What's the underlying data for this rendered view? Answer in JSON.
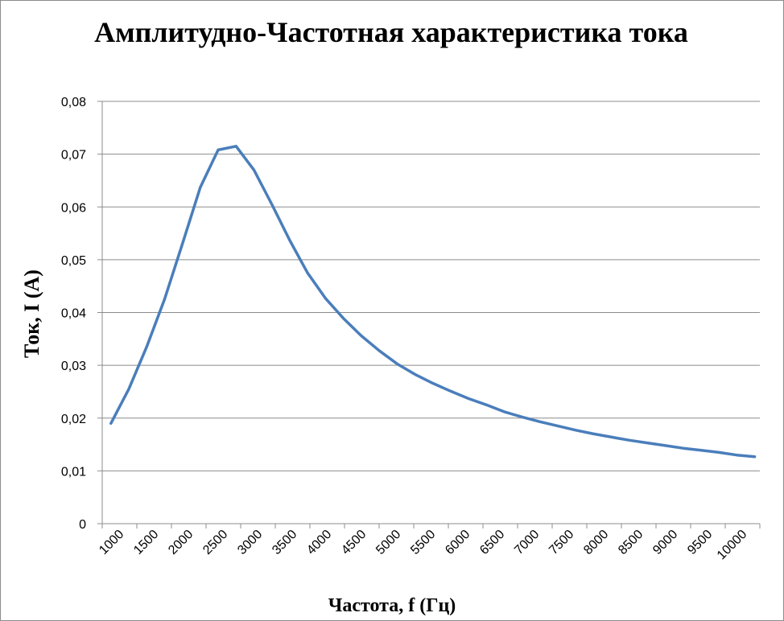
{
  "chart_data": {
    "type": "line",
    "title": "Амплитудно-Частотная характеристика тока",
    "xlabel": "Частота, f (Гц)",
    "ylabel": "Ток, I (A)",
    "ylim": [
      0,
      0.08
    ],
    "yticks": [
      "0",
      "0,01",
      "0,02",
      "0,03",
      "0,04",
      "0,05",
      "0,06",
      "0,07",
      "0,08"
    ],
    "xtick_labels": [
      "1000",
      "1500",
      "2000",
      "2500",
      "3000",
      "3500",
      "4000",
      "4500",
      "5000",
      "5500",
      "6000",
      "6500",
      "7000",
      "7500",
      "8000",
      "8500",
      "9000",
      "9500",
      "10000"
    ],
    "grid": true,
    "legend": "none",
    "series_color": "#4a7ebb",
    "series": [
      {
        "x": [
          1000,
          1250,
          1500,
          1750,
          2000,
          2250,
          2500,
          2750,
          3000,
          3250,
          3500,
          3750,
          4000,
          4250,
          4500,
          4750,
          5000,
          5250,
          5500,
          5750,
          6000,
          6250,
          6500,
          6750,
          7000,
          7250,
          7500,
          7750,
          8000,
          8250,
          8500,
          8750,
          9000,
          9250,
          9500,
          9750,
          10000
        ],
        "values": [
          0.019,
          0.0255,
          0.0335,
          0.0425,
          0.053,
          0.0637,
          0.0708,
          0.0715,
          0.067,
          0.0605,
          0.0537,
          0.0475,
          0.0427,
          0.0389,
          0.0356,
          0.0328,
          0.0303,
          0.0283,
          0.0266,
          0.0251,
          0.0237,
          0.0225,
          0.0212,
          0.0202,
          0.0193,
          0.0185,
          0.0177,
          0.017,
          0.0164,
          0.0158,
          0.0153,
          0.0148,
          0.0143,
          0.0139,
          0.0135,
          0.013,
          0.0127
        ]
      }
    ]
  }
}
